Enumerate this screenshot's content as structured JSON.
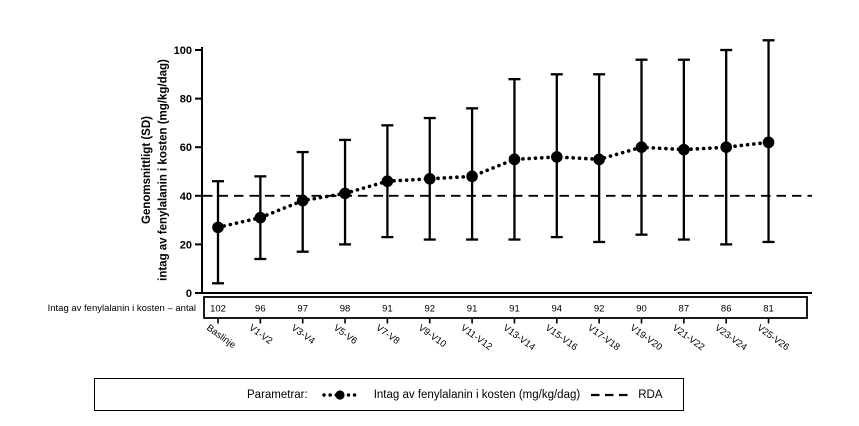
{
  "figure": {
    "y_axis_label_line1": "Genomsnittligt (SD)",
    "y_axis_label_line2": "intag av fenylalanin i kosten (mg/kg/dag)",
    "counts_row_label": "Intag av fenylalanin i kosten – antal",
    "legend": {
      "prefix": "Parametrar:",
      "series_label": "Intag av fenylalanin i kosten (mg/kg/dag)",
      "rda_label": "RDA"
    },
    "colors": {
      "foreground": "#000000",
      "background": "#ffffff"
    }
  },
  "chart_data": {
    "type": "line",
    "title": "",
    "xlabel": "",
    "ylabel": "Genomsnittligt (SD) intag av fenylalanin i kosten (mg/kg/dag)",
    "categories": [
      "Baslinje",
      "V1-V2",
      "V3-V4",
      "V5-V6",
      "V7-V8",
      "V9-V10",
      "V11-V12",
      "V13-V14",
      "V15-V16",
      "V17-V18",
      "V19-V20",
      "V21-V22",
      "V23-V24",
      "V25-V26"
    ],
    "series": [
      {
        "name": "Intag av fenylalanin i kosten (mg/kg/dag)",
        "means": [
          27,
          31,
          38,
          41,
          46,
          47,
          48,
          55,
          56,
          55,
          60,
          59,
          60,
          62
        ],
        "upper_sd": [
          46,
          48,
          58,
          63,
          69,
          72,
          76,
          88,
          90,
          90,
          96,
          96,
          100,
          104
        ],
        "lower_sd": [
          4,
          14,
          17,
          20,
          23,
          22,
          22,
          22,
          23,
          21,
          24,
          22,
          20,
          21
        ]
      }
    ],
    "counts_row": {
      "label": "Intag av fenylalanin i kosten – antal",
      "values": [
        102,
        96,
        97,
        98,
        91,
        92,
        91,
        91,
        94,
        92,
        90,
        87,
        86,
        81
      ]
    },
    "reference_line": {
      "name": "RDA",
      "value": 40,
      "style": "dashed"
    },
    "ylim": [
      0,
      100
    ],
    "yticks": [
      0,
      20,
      40,
      60,
      80,
      100
    ],
    "grid": false,
    "legend_position": "bottom",
    "marker_style": "filled-circle-on-dotted-line"
  }
}
